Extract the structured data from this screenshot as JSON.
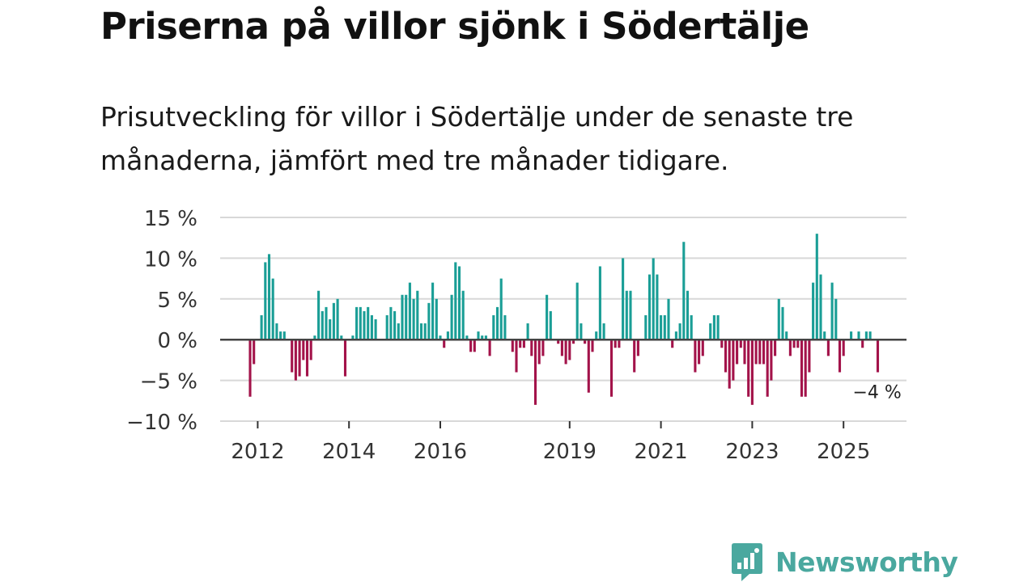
{
  "title": "Priserna på villor sjönk i Södertälje",
  "subtitle": "Prisutveckling för villor i Södertälje under de senaste tre månaderna, jämfört med tre månader tidigare.",
  "colors": {
    "positive": "#1a9e96",
    "negative": "#a3134a",
    "grid": "#d8d8d8",
    "zero": "#444444",
    "brand": "#4aa89f"
  },
  "chart_data": {
    "type": "bar",
    "title": "Priserna på villor sjönk i Södertälje",
    "xlabel": "",
    "ylabel": "",
    "ylim": [
      -10,
      15
    ],
    "y_ticks": [
      15,
      10,
      5,
      0,
      -5,
      -10
    ],
    "y_tick_labels": [
      "15 %",
      "10 %",
      "5 %",
      "0 %",
      "−5 %",
      "−10 %"
    ],
    "x_tick_labels": [
      "2012",
      "2014",
      "2016",
      "2019",
      "2021",
      "2023",
      "2025"
    ],
    "x_tick_index": [
      2,
      26,
      50,
      84,
      108,
      132,
      156
    ],
    "annotation": {
      "text": "−4 %",
      "index": 165
    },
    "grid": true,
    "legend": "none",
    "values": [
      -7,
      -3,
      0,
      3,
      9.5,
      10.5,
      7.5,
      2,
      1,
      1,
      0,
      -4,
      -5,
      -4.5,
      -2.5,
      -4.5,
      -2.5,
      0.5,
      6,
      3.5,
      4,
      2.5,
      4.5,
      5,
      0.5,
      -4.5,
      0,
      0.5,
      4,
      4,
      3.5,
      4,
      3,
      2.5,
      0,
      0,
      3,
      4,
      3.5,
      2,
      5.5,
      5.5,
      7,
      5,
      6,
      2,
      2,
      4.5,
      7,
      5,
      0.5,
      -1,
      1,
      5.5,
      9.5,
      9,
      6,
      0.5,
      -1.5,
      -1.5,
      1,
      0.5,
      0.5,
      -2,
      3,
      4,
      7.5,
      3,
      0,
      -1.5,
      -4,
      -1,
      -1,
      2,
      -2,
      -8,
      -3,
      -2,
      5.5,
      3.5,
      0,
      -0.5,
      -2,
      -3,
      -2.5,
      -0.5,
      7,
      2,
      -0.5,
      -6.5,
      -1.5,
      1,
      9,
      2,
      0,
      -7,
      -1,
      -1,
      10,
      6,
      6,
      -4,
      -2,
      0,
      3,
      8,
      10,
      8,
      3,
      3,
      5,
      -1,
      1,
      2,
      12,
      6,
      3,
      -4,
      -3,
      -2,
      0,
      2,
      3,
      3,
      -1,
      -4,
      -6,
      -5,
      -3,
      -1,
      -3,
      -7,
      -8,
      -3,
      -3,
      -3,
      -7,
      -5,
      -2,
      5,
      4,
      1,
      -2,
      -1,
      -1,
      -7,
      -7,
      -4,
      7,
      13,
      8,
      1,
      -2,
      7,
      5,
      -4,
      -2,
      0,
      1,
      0,
      1,
      -1,
      1,
      1,
      0,
      -4
    ]
  },
  "branding": {
    "name": "Newsworthy",
    "logo_icon": "chart-bubble-icon"
  }
}
